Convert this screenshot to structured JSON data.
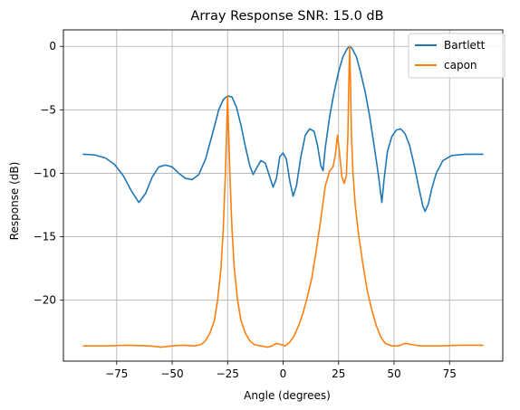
{
  "chart_data": {
    "type": "line",
    "title": "Array Response SNR: 15.0 dB",
    "xlabel": "Angle (degrees)",
    "ylabel": "Response (dB)",
    "xlim": [
      -99,
      99
    ],
    "ylim": [
      -24.8,
      1.3
    ],
    "xticks": [
      -75,
      -50,
      -25,
      0,
      25,
      50,
      75
    ],
    "yticks": [
      0,
      -5,
      -10,
      -15,
      -20
    ],
    "xtick_labels": [
      "−75",
      "−50",
      "−25",
      "0",
      "25",
      "50",
      "75"
    ],
    "ytick_labels": [
      "0",
      "−5",
      "−10",
      "−15",
      "−20"
    ],
    "grid": true,
    "legend_position": "top-right",
    "series": [
      {
        "name": "Bartlett",
        "color": "#1f77b4",
        "points": [
          [
            -90,
            -8.5
          ],
          [
            -85,
            -8.55
          ],
          [
            -80,
            -8.8
          ],
          [
            -76,
            -9.3
          ],
          [
            -72,
            -10.2
          ],
          [
            -68,
            -11.5
          ],
          [
            -65,
            -12.3
          ],
          [
            -62,
            -11.6
          ],
          [
            -59,
            -10.3
          ],
          [
            -56,
            -9.5
          ],
          [
            -53,
            -9.35
          ],
          [
            -50,
            -9.5
          ],
          [
            -47,
            -10.0
          ],
          [
            -44,
            -10.4
          ],
          [
            -41,
            -10.5
          ],
          [
            -38,
            -10.1
          ],
          [
            -35,
            -8.9
          ],
          [
            -32,
            -7.0
          ],
          [
            -29,
            -5.0
          ],
          [
            -27,
            -4.2
          ],
          [
            -25,
            -3.9
          ],
          [
            -23,
            -4.0
          ],
          [
            -21,
            -4.8
          ],
          [
            -19,
            -6.2
          ],
          [
            -17,
            -7.9
          ],
          [
            -15,
            -9.4
          ],
          [
            -13.5,
            -10.1
          ],
          [
            -12,
            -9.6
          ],
          [
            -10,
            -9.0
          ],
          [
            -8,
            -9.2
          ],
          [
            -6,
            -10.3
          ],
          [
            -4.5,
            -11.1
          ],
          [
            -3,
            -10.4
          ],
          [
            -1.5,
            -8.7
          ],
          [
            0,
            -8.4
          ],
          [
            1.5,
            -8.9
          ],
          [
            3,
            -10.6
          ],
          [
            4.5,
            -11.8
          ],
          [
            6,
            -11.0
          ],
          [
            8,
            -8.7
          ],
          [
            10,
            -7.0
          ],
          [
            12,
            -6.5
          ],
          [
            14,
            -6.7
          ],
          [
            15.5,
            -7.8
          ],
          [
            17,
            -9.4
          ],
          [
            18,
            -9.8
          ],
          [
            19,
            -8.0
          ],
          [
            21,
            -5.5
          ],
          [
            23,
            -3.6
          ],
          [
            25,
            -2.0
          ],
          [
            27,
            -0.8
          ],
          [
            29,
            -0.15
          ],
          [
            30,
            0.0
          ],
          [
            31,
            -0.15
          ],
          [
            33,
            -0.8
          ],
          [
            35,
            -2.1
          ],
          [
            37,
            -3.6
          ],
          [
            39,
            -5.5
          ],
          [
            41,
            -7.8
          ],
          [
            43,
            -10.2
          ],
          [
            44.5,
            -12.3
          ],
          [
            45.5,
            -10.5
          ],
          [
            47,
            -8.3
          ],
          [
            49,
            -7.1
          ],
          [
            51,
            -6.6
          ],
          [
            53,
            -6.5
          ],
          [
            55,
            -6.9
          ],
          [
            57,
            -7.8
          ],
          [
            59,
            -9.3
          ],
          [
            61,
            -11.0
          ],
          [
            63,
            -12.6
          ],
          [
            64,
            -13.0
          ],
          [
            65.5,
            -12.4
          ],
          [
            67,
            -11.2
          ],
          [
            69,
            -10.0
          ],
          [
            72,
            -9.0
          ],
          [
            76,
            -8.6
          ],
          [
            82,
            -8.5
          ],
          [
            90,
            -8.5
          ]
        ]
      },
      {
        "name": "capon",
        "color": "#ff7f0e",
        "points": [
          [
            -90,
            -23.6
          ],
          [
            -80,
            -23.6
          ],
          [
            -70,
            -23.55
          ],
          [
            -60,
            -23.6
          ],
          [
            -55,
            -23.7
          ],
          [
            -50,
            -23.6
          ],
          [
            -45,
            -23.55
          ],
          [
            -40,
            -23.6
          ],
          [
            -37,
            -23.5
          ],
          [
            -35,
            -23.2
          ],
          [
            -33,
            -22.6
          ],
          [
            -31,
            -21.6
          ],
          [
            -29.5,
            -20.0
          ],
          [
            -28,
            -17.5
          ],
          [
            -27,
            -14.5
          ],
          [
            -26,
            -10.0
          ],
          [
            -25.5,
            -7.0
          ],
          [
            -25,
            -3.9
          ],
          [
            -24.5,
            -7.0
          ],
          [
            -24,
            -10.0
          ],
          [
            -23,
            -14.5
          ],
          [
            -22,
            -17.5
          ],
          [
            -20.5,
            -20.0
          ],
          [
            -19,
            -21.6
          ],
          [
            -17,
            -22.6
          ],
          [
            -15,
            -23.2
          ],
          [
            -13,
            -23.5
          ],
          [
            -10,
            -23.6
          ],
          [
            -7,
            -23.7
          ],
          [
            -5,
            -23.6
          ],
          [
            -3,
            -23.4
          ],
          [
            -1,
            -23.5
          ],
          [
            1,
            -23.6
          ],
          [
            3,
            -23.3
          ],
          [
            5,
            -22.8
          ],
          [
            7,
            -22.0
          ],
          [
            9,
            -21.0
          ],
          [
            11,
            -19.7
          ],
          [
            13,
            -18.2
          ],
          [
            15,
            -16.0
          ],
          [
            17,
            -13.6
          ],
          [
            19,
            -11.0
          ],
          [
            21,
            -9.8
          ],
          [
            22.5,
            -9.5
          ],
          [
            23.5,
            -8.6
          ],
          [
            24.5,
            -7.0
          ],
          [
            25.5,
            -8.5
          ],
          [
            26.5,
            -10.3
          ],
          [
            27.5,
            -10.8
          ],
          [
            28.5,
            -10.2
          ],
          [
            29.2,
            -7.0
          ],
          [
            29.6,
            -3.0
          ],
          [
            30,
            0.0
          ],
          [
            30.4,
            -3.0
          ],
          [
            30.8,
            -7.0
          ],
          [
            31.5,
            -10.0
          ],
          [
            32.5,
            -12.5
          ],
          [
            34,
            -14.8
          ],
          [
            36,
            -17.2
          ],
          [
            38,
            -19.3
          ],
          [
            40,
            -20.8
          ],
          [
            42,
            -22.0
          ],
          [
            44,
            -22.9
          ],
          [
            46,
            -23.4
          ],
          [
            49,
            -23.6
          ],
          [
            52,
            -23.6
          ],
          [
            55,
            -23.4
          ],
          [
            58,
            -23.5
          ],
          [
            62,
            -23.6
          ],
          [
            70,
            -23.6
          ],
          [
            80,
            -23.55
          ],
          [
            90,
            -23.55
          ]
        ]
      }
    ]
  }
}
